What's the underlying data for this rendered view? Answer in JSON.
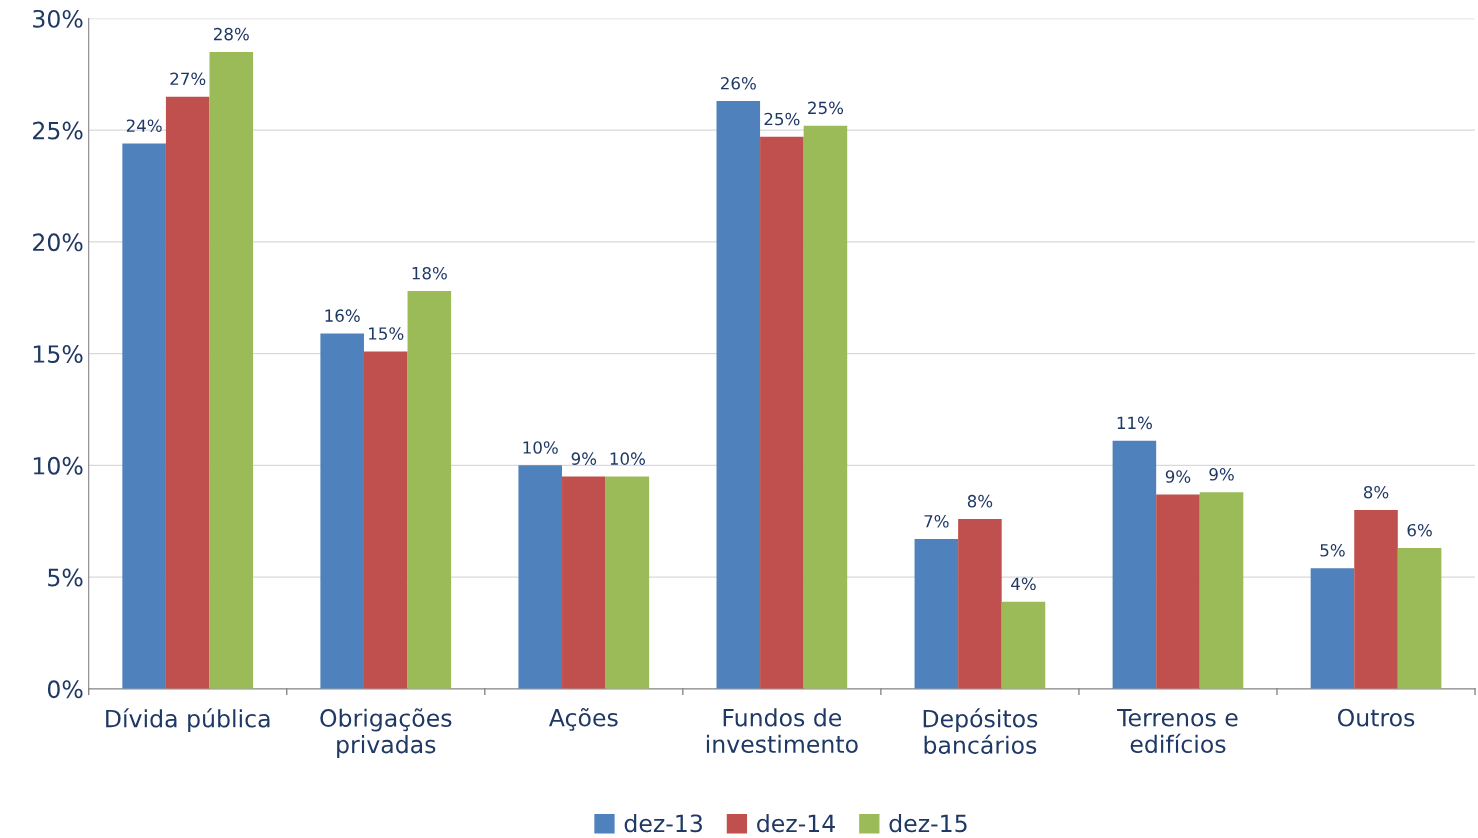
{
  "chart_data": {
    "type": "bar",
    "categories": [
      "Dívida pública",
      "Obrigações\nprivadas",
      "Ações",
      "Fundos de\ninvestimento",
      "Depósitos\nbancários",
      "Terrenos e\nedifícios",
      "Outros"
    ],
    "series": [
      {
        "name": "dez-13",
        "color": "#4f81bd",
        "values": [
          24.4,
          15.9,
          10.0,
          26.3,
          6.7,
          11.1,
          5.4
        ],
        "value_labels": [
          "24%",
          "16%",
          "10%",
          "26%",
          "7%",
          "11%",
          "5%"
        ]
      },
      {
        "name": "dez-14",
        "color": "#c0504d",
        "values": [
          26.5,
          15.1,
          9.5,
          24.7,
          7.6,
          8.7,
          8.0
        ],
        "value_labels": [
          "27%",
          "15%",
          "9%",
          "25%",
          "8%",
          "9%",
          "8%"
        ]
      },
      {
        "name": "dez-15",
        "color": "#9bbb59",
        "values": [
          28.5,
          17.8,
          9.5,
          25.2,
          3.9,
          8.8,
          6.3
        ],
        "value_labels": [
          "28%",
          "18%",
          "10%",
          "25%",
          "4%",
          "9%",
          "6%"
        ]
      }
    ],
    "ylim": [
      0,
      30
    ],
    "yticks": [
      {
        "value": 0,
        "label": "0%"
      },
      {
        "value": 5,
        "label": "5%"
      },
      {
        "value": 10,
        "label": "10%"
      },
      {
        "value": 15,
        "label": "15%"
      },
      {
        "value": 20,
        "label": "20%"
      },
      {
        "value": 25,
        "label": "25%"
      },
      {
        "value": 30,
        "label": "30%"
      }
    ],
    "grid": "y",
    "legend": "bottom"
  }
}
